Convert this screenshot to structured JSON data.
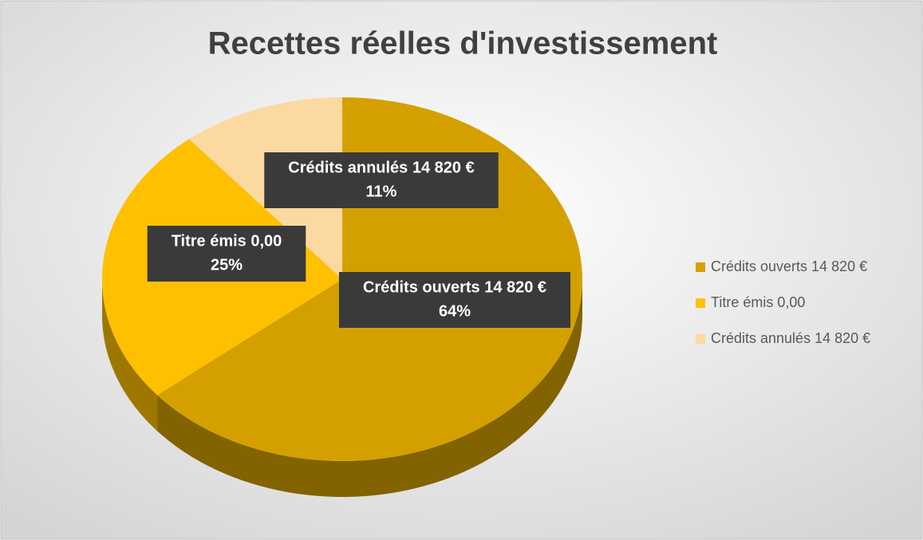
{
  "chart_data": {
    "type": "pie",
    "title": "Recettes réelles d'investissement",
    "categories": [
      "Crédits ouverts 14 820 €",
      "Titre émis 0,00",
      "Crédits annulés 14 820 €"
    ],
    "values": [
      64,
      25,
      11
    ],
    "value_labels": [
      "64%",
      "25%",
      "11%"
    ],
    "series": [
      {
        "name": "Crédits ouverts 14 820 €",
        "color": "#d4a000"
      },
      {
        "name": "Titre émis 0,00",
        "color": "#ffc000"
      },
      {
        "name": "Crédits annulés 14 820 €",
        "color": "#fcd9a0"
      }
    ],
    "legend": "right"
  }
}
